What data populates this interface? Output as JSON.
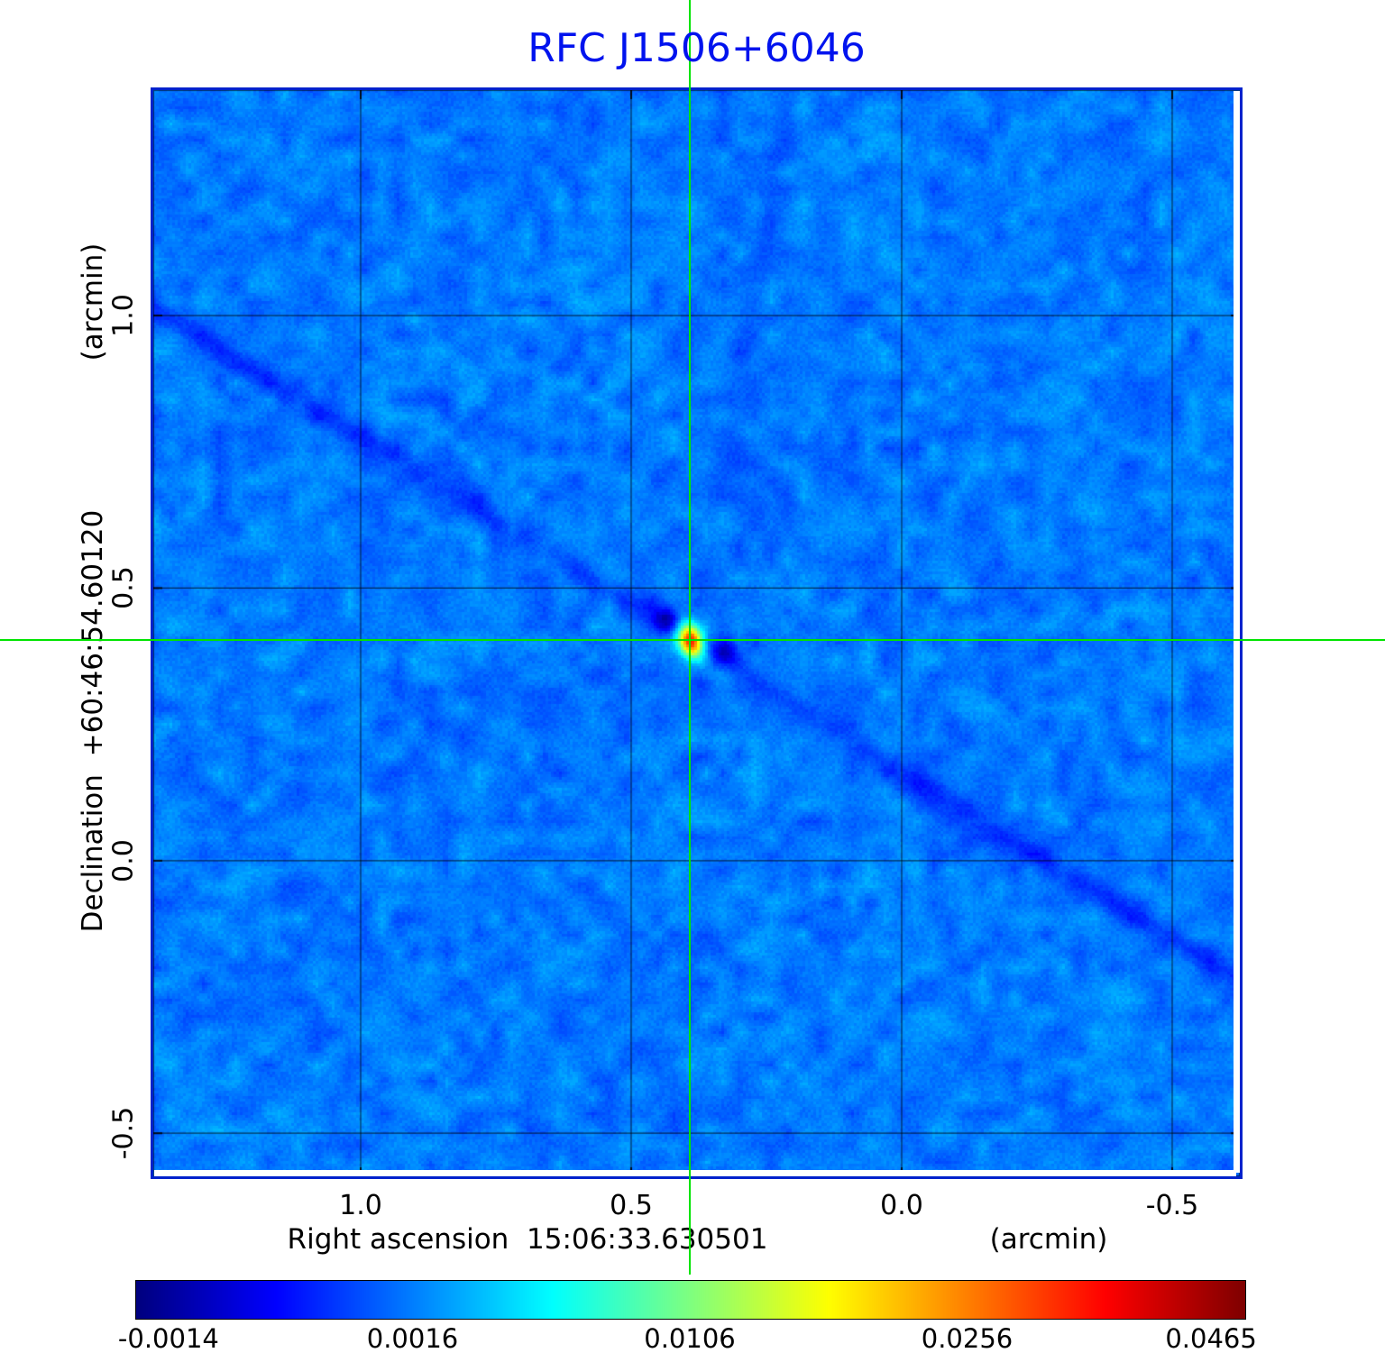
{
  "title": "RFC J1506+6046",
  "axes": {
    "y_unit": "(arcmin)",
    "y_label": "Declination  +60:46:54.60120",
    "x_label": "Right ascension  15:06:33.630501",
    "x_unit": "(arcmin)"
  },
  "colorbar_labels": [
    "-0.0014",
    "0.0016",
    "0.0106",
    "0.0256",
    "0.0465"
  ],
  "colors": {
    "title": "#0013ee",
    "frame": "#0022cc",
    "crosshair": "#00e400"
  },
  "chart_data": {
    "type": "heatmap",
    "title": "RFC J1506+6046",
    "xlabel": "Right ascension  15:06:33.630501 (arcmin)",
    "ylabel": "Declination  +60:46:54.60120 (arcmin)",
    "colormap": "jet",
    "grid": true,
    "x_ticks": [
      1.0,
      0.5,
      0.0,
      -0.5
    ],
    "y_ticks": [
      1.0,
      0.5,
      0.0,
      -0.5
    ],
    "x_range": [
      1.3833,
      -0.625
    ],
    "y_range": [
      1.4135,
      -0.579
    ],
    "colorbar_ticks": [
      -0.0014,
      0.0016,
      0.0106,
      0.0256,
      0.0465
    ],
    "value_range": [
      -0.0014,
      0.0465
    ],
    "source": {
      "x": 0.392,
      "y": 0.405,
      "peak_value": 0.0465
    },
    "crosshair": {
      "x": 0.392,
      "y": 0.405
    }
  }
}
